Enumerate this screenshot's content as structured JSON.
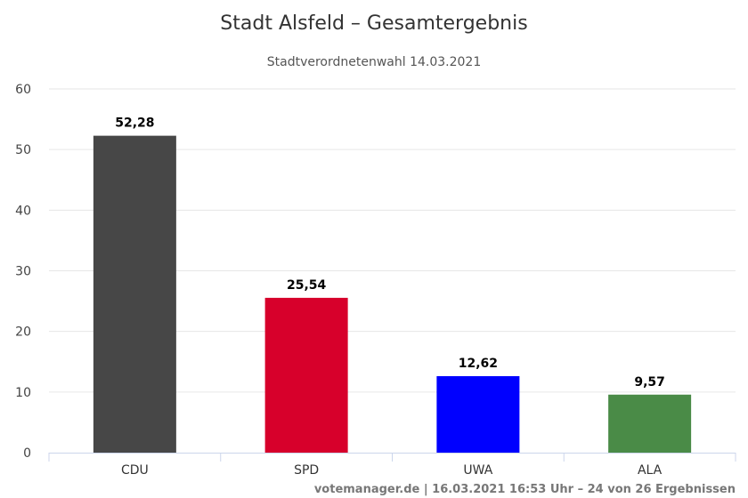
{
  "chart_data": {
    "type": "bar",
    "title": "Stadt Alsfeld – Gesamtergebnis",
    "subtitle": "Stadtverordnetenwahl 14.03.2021",
    "categories": [
      "CDU",
      "SPD",
      "UWA",
      "ALA"
    ],
    "values": [
      52.28,
      25.54,
      12.62,
      9.57
    ],
    "value_labels": [
      "52,28",
      "25,54",
      "12,62",
      "9,57"
    ],
    "colors": [
      "#474747",
      "#d7002b",
      "#0000ff",
      "#4a8b47"
    ],
    "ylim": [
      0,
      60
    ],
    "yticks": [
      0,
      10,
      20,
      30,
      40,
      50,
      60
    ],
    "xlabel": "",
    "ylabel": "",
    "grid": true,
    "legend": "none"
  },
  "credits": "votemanager.de | 16.03.2021 16:53 Uhr – 24 von 26 Ergebnissen"
}
